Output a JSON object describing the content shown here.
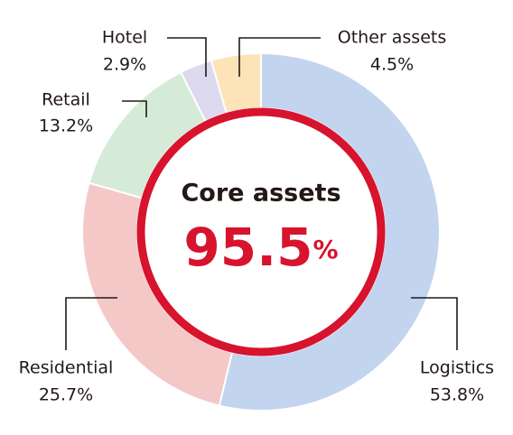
{
  "chart_data": {
    "type": "donut",
    "center_title": "Core assets",
    "center_value": "95.5",
    "center_unit": "%",
    "categories": [
      "Logistics",
      "Residential",
      "Retail",
      "Hotel",
      "Other assets"
    ],
    "values": [
      53.8,
      25.7,
      13.2,
      2.9,
      4.5
    ],
    "value_labels": [
      "53.8%",
      "25.7%",
      "13.2%",
      "2.9%",
      "4.5%"
    ],
    "colors": [
      "#c3d4ee",
      "#f5c8c8",
      "#d5ebd7",
      "#ddd9ef",
      "#fde3b8"
    ],
    "ring_color": "#d7132d"
  }
}
